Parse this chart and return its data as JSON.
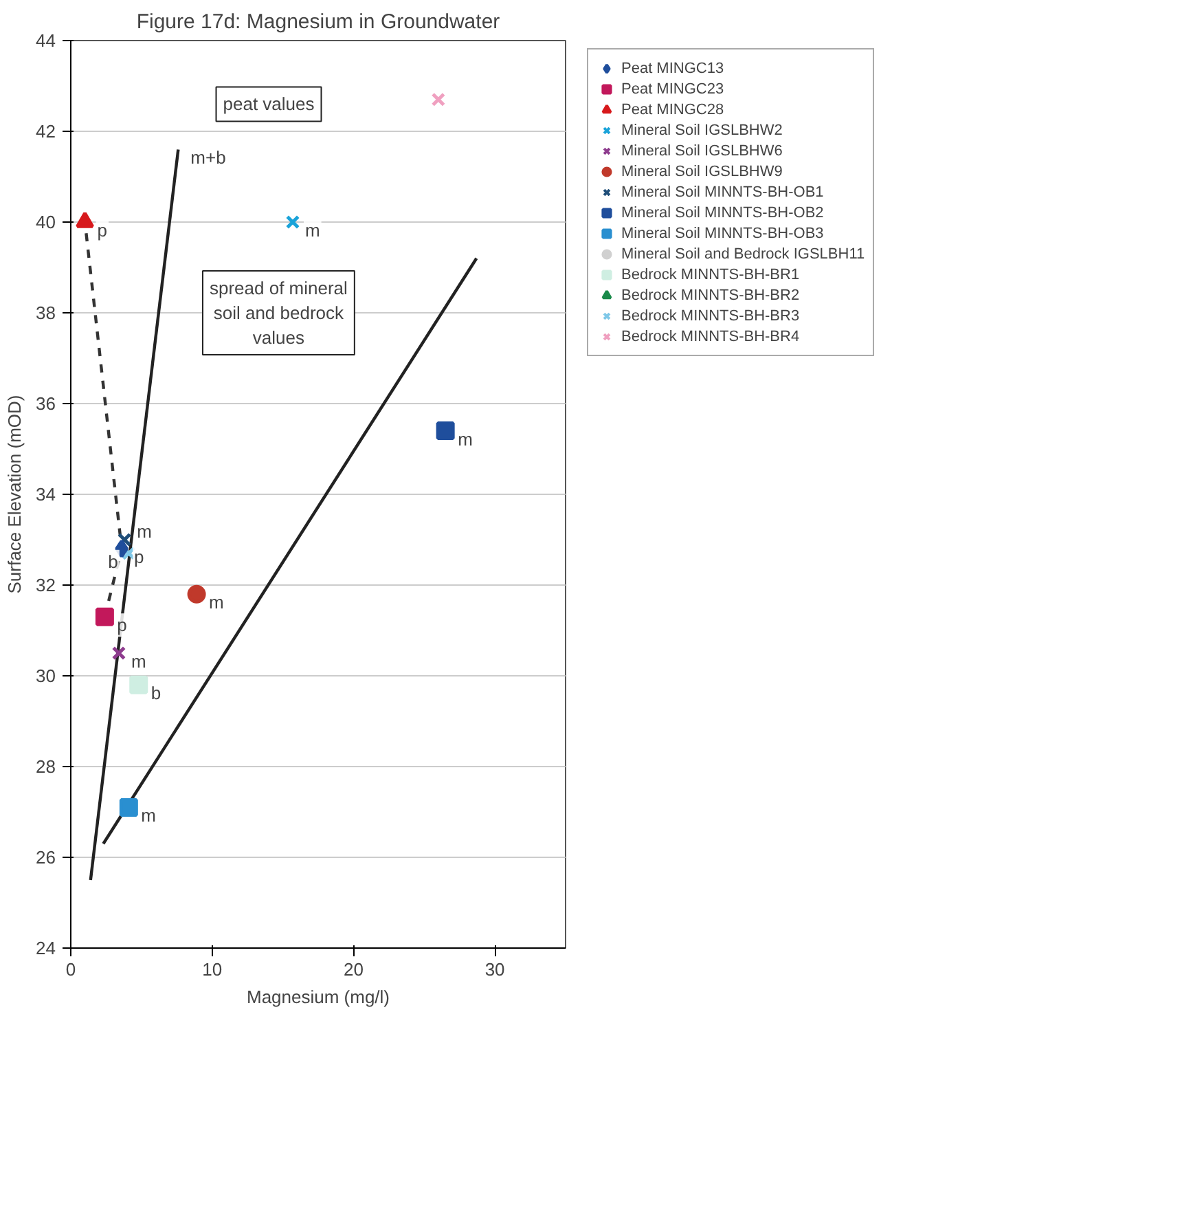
{
  "chart_data": {
    "type": "scatter",
    "title": "Figure 17d: Magnesium in Groundwater",
    "xlabel": "Magnesium (mg/l)",
    "ylabel": "Surface Elevation (mOD)",
    "xlim": [
      0,
      35
    ],
    "xticks": [
      0,
      10,
      20,
      30
    ],
    "ylim": [
      24,
      44
    ],
    "yticks": [
      24,
      26,
      28,
      30,
      32,
      34,
      36,
      38,
      40,
      42,
      44
    ],
    "grid": "y",
    "legend": "right",
    "series": [
      {
        "name": "Peat MINGC13",
        "color": "#1f4e9c",
        "marker": "diamond",
        "x": [
          3.6
        ],
        "values": [
          32.8
        ]
      },
      {
        "name": "Peat MINGC23",
        "color": "#c2185b",
        "marker": "square",
        "x": [
          2.4
        ],
        "values": [
          31.3
        ]
      },
      {
        "name": "Peat MINGC28",
        "color": "#d7191c",
        "marker": "triangle",
        "x": [
          1.0
        ],
        "values": [
          40.0
        ]
      },
      {
        "name": "Mineral Soil IGSLBHW2",
        "color": "#1aa3d9",
        "marker": "cross",
        "x": [
          15.7
        ],
        "values": [
          40.0
        ]
      },
      {
        "name": "Mineral Soil IGSLBHW6",
        "color": "#8e3c8e",
        "marker": "cross",
        "x": [
          3.4
        ],
        "values": [
          30.5
        ]
      },
      {
        "name": "Mineral Soil IGSLBHW9",
        "color": "#c0392b",
        "marker": "circle",
        "x": [
          8.9
        ],
        "values": [
          31.8
        ]
      },
      {
        "name": "Mineral Soil MINNTS-BH-OB1",
        "color": "#1f4e79",
        "marker": "cross",
        "x": [
          3.8
        ],
        "values": [
          33.0
        ]
      },
      {
        "name": "Mineral Soil MINNTS-BH-OB2",
        "color": "#1f4e9c",
        "marker": "square",
        "x": [
          26.5
        ],
        "values": [
          35.4
        ]
      },
      {
        "name": "Mineral Soil MINNTS-BH-OB3",
        "color": "#2a8fd0",
        "marker": "square",
        "x": [
          4.1
        ],
        "values": [
          27.1
        ]
      },
      {
        "name": "Mineral Soil and Bedrock IGSLBH11",
        "color": "#d0d0d0",
        "marker": "circle"
      },
      {
        "name": "Bedrock MINNTS-BH-BR1",
        "color": "#cfeee2",
        "marker": "square",
        "x": [
          4.8
        ],
        "values": [
          29.8
        ]
      },
      {
        "name": "Bedrock MINNTS-BH-BR2",
        "color": "#1a8a4a",
        "marker": "triangle"
      },
      {
        "name": "Bedrock MINNTS-BH-BR3",
        "color": "#7fc8e8",
        "marker": "cross",
        "x": [
          4.1
        ],
        "values": [
          32.7
        ]
      },
      {
        "name": "Bedrock MINNTS-BH-BR4",
        "color": "#f0a0c0",
        "marker": "cross",
        "x": [
          26.0
        ],
        "values": [
          42.7
        ]
      },
      {
        "type": "line",
        "color": "#333333",
        "line_style": "dashed",
        "x": [
          2.4,
          3.6,
          1.0
        ],
        "values": [
          31.3,
          32.8,
          40.0
        ]
      },
      {
        "type": "line",
        "color": "#222222",
        "line_style": "solid",
        "x": [
          1.4,
          7.6
        ],
        "values": [
          25.5,
          41.6
        ]
      },
      {
        "type": "line",
        "color": "#222222",
        "line_style": "solid",
        "x": [
          2.3,
          28.7
        ],
        "values": [
          26.3,
          39.2
        ]
      }
    ],
    "annotations": [
      "peat values",
      "spread of mineral soil and bedrock values",
      {
        "text": "p",
        "x": 1.0,
        "y": 40.0
      },
      {
        "text": "p",
        "x": 2.4,
        "y": 31.3
      },
      {
        "text": "p",
        "x": 3.6,
        "y": 32.8
      },
      {
        "text": "m",
        "x": 3.4,
        "y": 30.5
      },
      {
        "text": "m",
        "x": 3.8,
        "y": 33.0
      },
      {
        "text": "b",
        "x": 4.1,
        "y": 32.7
      },
      {
        "text": "b",
        "x": 4.8,
        "y": 29.8
      },
      {
        "text": "m",
        "x": 4.1,
        "y": 27.1
      },
      {
        "text": "m",
        "x": 8.9,
        "y": 31.8
      },
      {
        "text": "m",
        "x": 15.7,
        "y": 40.0
      },
      {
        "text": "m",
        "x": 26.5,
        "y": 35.4
      },
      {
        "text": "m+b",
        "x": 7.6,
        "y": 41.6
      }
    ]
  }
}
